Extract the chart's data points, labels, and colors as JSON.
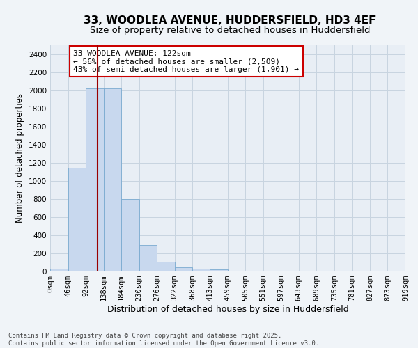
{
  "title": "33, WOODLEA AVENUE, HUDDERSFIELD, HD3 4EF",
  "subtitle": "Size of property relative to detached houses in Huddersfield",
  "xlabel": "Distribution of detached houses by size in Huddersfield",
  "ylabel": "Number of detached properties",
  "bar_color": "#c8d8ee",
  "bar_edge_color": "#7aaad0",
  "bin_edges": [
    0,
    46,
    92,
    138,
    184,
    230,
    276,
    322,
    368,
    413,
    459,
    505,
    551,
    597,
    643,
    689,
    735,
    781,
    827,
    873,
    919
  ],
  "bar_heights": [
    30,
    1150,
    2020,
    2020,
    800,
    295,
    105,
    45,
    30,
    20,
    10,
    5,
    4,
    3,
    2,
    2,
    1,
    1,
    1,
    1
  ],
  "bin_labels": [
    "0sqm",
    "46sqm",
    "92sqm",
    "138sqm",
    "184sqm",
    "230sqm",
    "276sqm",
    "322sqm",
    "368sqm",
    "413sqm",
    "459sqm",
    "505sqm",
    "551sqm",
    "597sqm",
    "643sqm",
    "689sqm",
    "735sqm",
    "781sqm",
    "827sqm",
    "873sqm",
    "919sqm"
  ],
  "ylim": [
    0,
    2500
  ],
  "yticks": [
    0,
    200,
    400,
    600,
    800,
    1000,
    1200,
    1400,
    1600,
    1800,
    2000,
    2200,
    2400
  ],
  "xlim": [
    0,
    919
  ],
  "property_size": 122,
  "vline_color": "#990000",
  "annotation_text": "33 WOODLEA AVENUE: 122sqm\n← 56% of detached houses are smaller (2,509)\n43% of semi-detached houses are larger (1,901) →",
  "annotation_box_color": "#ffffff",
  "annotation_box_edge_color": "#cc0000",
  "grid_color": "#c8d4e0",
  "background_color": "#f0f4f8",
  "plot_bg_color": "#e8eef5",
  "footer_text": "Contains HM Land Registry data © Crown copyright and database right 2025.\nContains public sector information licensed under the Open Government Licence v3.0.",
  "title_fontsize": 11,
  "subtitle_fontsize": 9.5,
  "xlabel_fontsize": 9,
  "ylabel_fontsize": 8.5,
  "tick_fontsize": 7.5,
  "annotation_fontsize": 8,
  "footer_fontsize": 6.5
}
